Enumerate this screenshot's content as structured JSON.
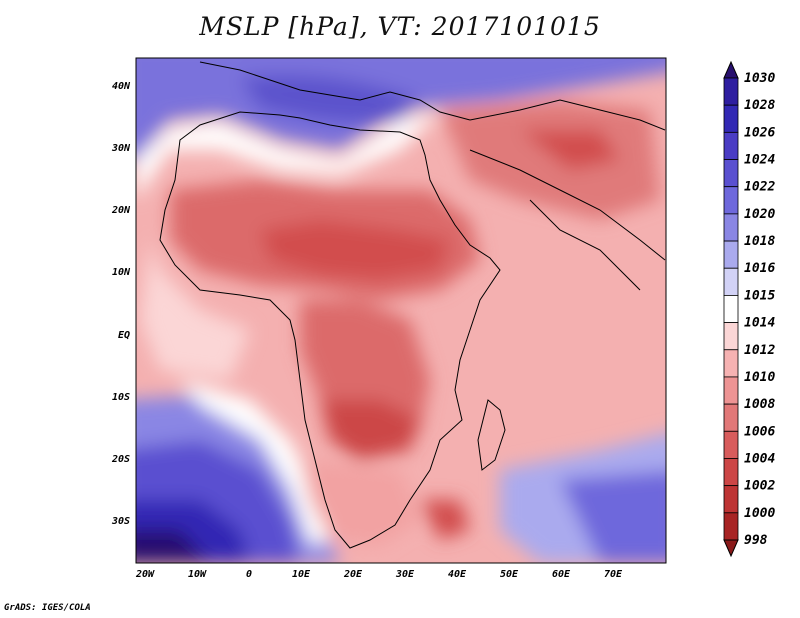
{
  "title": "MSLP [hPa], VT: 2017101015",
  "credit": "GrADS: IGES/COLA",
  "lon_ticks": [
    "20W",
    "10W",
    "0",
    "10E",
    "20E",
    "30E",
    "40E",
    "50E",
    "60E",
    "70E"
  ],
  "lat_ticks": [
    "40N",
    "30N",
    "20N",
    "10N",
    "EQ",
    "10S",
    "20S",
    "30S"
  ],
  "colorbar": {
    "labels": [
      "1030",
      "1028",
      "1026",
      "1024",
      "1022",
      "1020",
      "1018",
      "1016",
      "1015",
      "1014",
      "1012",
      "1010",
      "1008",
      "1006",
      "1004",
      "1002",
      "1000",
      "998"
    ],
    "colors": [
      "#28106e",
      "#2e1ea0",
      "#3228b4",
      "#4a3cc4",
      "#5a50d0",
      "#6e68dc",
      "#8a86e4",
      "#aaaaee",
      "#d2d2f6",
      "#ffffff",
      "#fbd6d6",
      "#f6b2b2",
      "#ee9494",
      "#e27878",
      "#d85c5c",
      "#cc4646",
      "#be3434",
      "#a82424",
      "#8a1a1a"
    ]
  },
  "colors": {
    "ocean_high": "#6e68dc",
    "land_low": "#d85c5c",
    "background": "#ffffff"
  }
}
